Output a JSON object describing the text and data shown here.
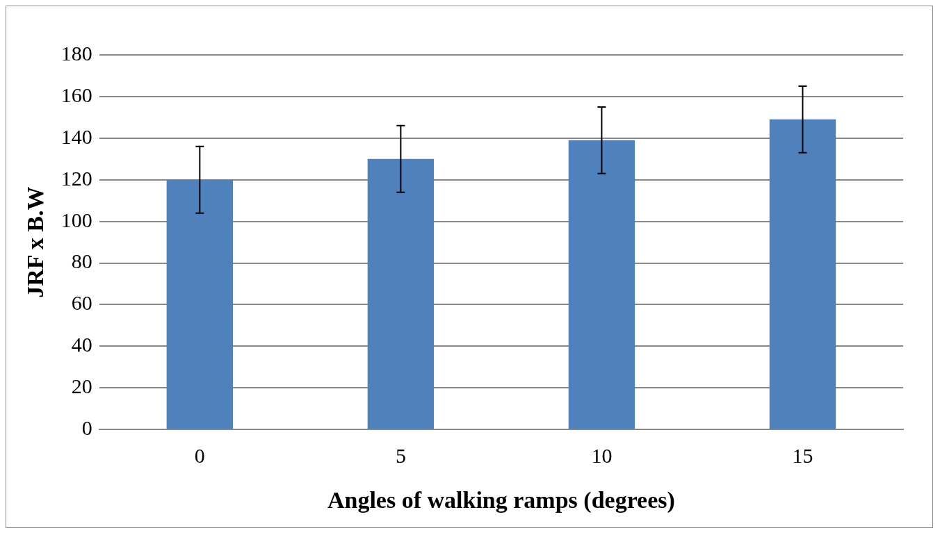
{
  "chart_data": {
    "type": "bar",
    "xlabel": "Angles of walking ramps (degrees)",
    "ylabel": "JRF x B.W",
    "categories": [
      "0",
      "5",
      "10",
      "15"
    ],
    "values": [
      120,
      130,
      139,
      149
    ],
    "errors": [
      16,
      16,
      16,
      16
    ],
    "color": "#4f81bd",
    "ylim": [
      0,
      180
    ],
    "yticks": [
      0,
      20,
      40,
      60,
      80,
      100,
      120,
      140,
      160,
      180
    ],
    "grid": "y",
    "legend": false
  }
}
